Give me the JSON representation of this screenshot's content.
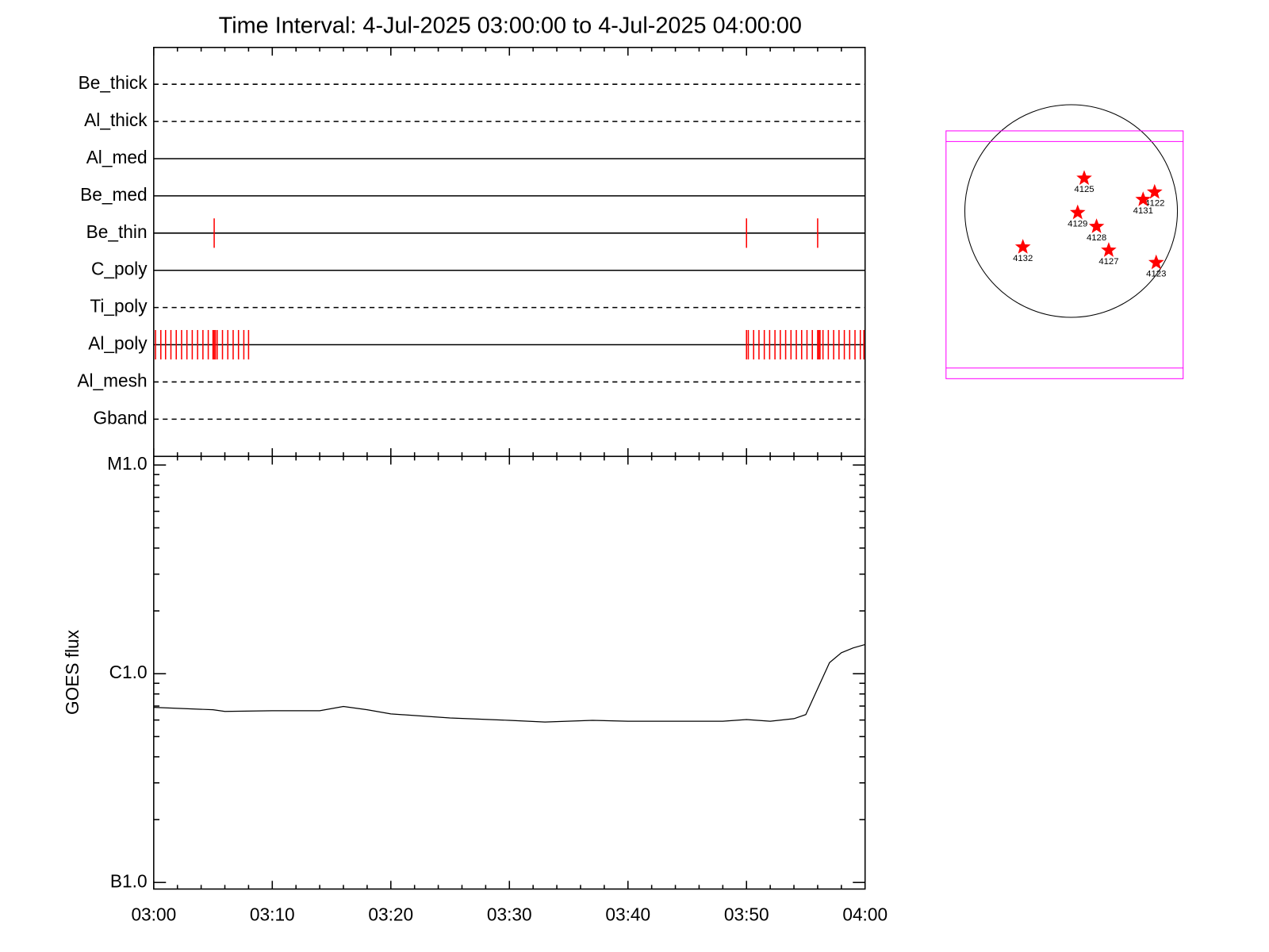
{
  "chart_data": [
    {
      "type": "timeline",
      "title": "Time Interval:  4-Jul-2025 03:00:00 to  4-Jul-2025 04:00:00",
      "xlim": [
        0,
        60
      ],
      "xticks": [
        0,
        10,
        20,
        30,
        40,
        50,
        60
      ],
      "xminorticks": [
        2,
        4,
        6,
        8,
        12,
        14,
        16,
        18,
        22,
        24,
        26,
        28,
        32,
        34,
        36,
        38,
        42,
        44,
        46,
        48,
        52,
        54,
        56,
        58
      ],
      "event_color": "#ff0000",
      "rows": [
        {
          "name": "Be_thick",
          "style": "dashed",
          "events": []
        },
        {
          "name": "Al_thick",
          "style": "dashed",
          "events": []
        },
        {
          "name": "Al_med",
          "style": "solid",
          "events": []
        },
        {
          "name": "Be_med",
          "style": "solid",
          "events": []
        },
        {
          "name": "Be_thin",
          "style": "solid",
          "events": [
            5.1,
            50.0,
            56.0
          ]
        },
        {
          "name": "C_poly",
          "style": "solid",
          "events": []
        },
        {
          "name": "Ti_poly",
          "style": "dashed",
          "events": []
        },
        {
          "name": "Al_poly",
          "style": "solid",
          "events": [
            0.15,
            0.6,
            1.0,
            1.45,
            1.9,
            2.35,
            2.8,
            3.25,
            3.7,
            4.15,
            4.6,
            5.0,
            5.1,
            5.2,
            5.35,
            5.8,
            6.25,
            6.7,
            7.15,
            7.6,
            8.0,
            50.0,
            50.15,
            50.6,
            51.05,
            51.5,
            51.95,
            52.4,
            52.85,
            53.3,
            53.75,
            54.2,
            54.65,
            55.1,
            55.55,
            56.0,
            56.1,
            56.2,
            56.45,
            56.9,
            57.35,
            57.8,
            58.25,
            58.7,
            59.15,
            59.6,
            59.9
          ]
        },
        {
          "name": "Al_mesh",
          "style": "dashed",
          "events": []
        },
        {
          "name": "Gband",
          "style": "dashed",
          "events": []
        }
      ]
    },
    {
      "type": "line",
      "ylabel": "GOES flux",
      "color": "#000000",
      "log_scale": true,
      "xlim": [
        0,
        60
      ],
      "xticks": [
        {
          "value": 0,
          "label": "03:00"
        },
        {
          "value": 10,
          "label": "03:10"
        },
        {
          "value": 20,
          "label": "03:20"
        },
        {
          "value": 30,
          "label": "03:30"
        },
        {
          "value": 40,
          "label": "03:40"
        },
        {
          "value": 50,
          "label": "03:50"
        },
        {
          "value": 60,
          "label": "04:00"
        }
      ],
      "xminorticks": [
        2,
        4,
        6,
        8,
        12,
        14,
        16,
        18,
        22,
        24,
        26,
        28,
        32,
        34,
        36,
        38,
        42,
        44,
        46,
        48,
        52,
        54,
        56,
        58
      ],
      "ylim": [
        9.3e-08,
        1.1e-05
      ],
      "yticks": [
        {
          "value": 1e-07,
          "label": "B1.0"
        },
        {
          "value": 1e-06,
          "label": "C1.0"
        },
        {
          "value": 1e-05,
          "label": "M1.0"
        }
      ],
      "yminorticks": [
        2e-07,
        3e-07,
        4e-07,
        5e-07,
        6e-07,
        7e-07,
        8e-07,
        9e-07,
        2e-06,
        3e-06,
        4e-06,
        5e-06,
        6e-06,
        7e-06,
        8e-06,
        9e-06
      ],
      "x": [
        0,
        5,
        6,
        10,
        14,
        16,
        18,
        20,
        25,
        30,
        33,
        37,
        40,
        48,
        50,
        52,
        54,
        55,
        57,
        58,
        59,
        60
      ],
      "values": [
        6.9e-07,
        6.72e-07,
        6.6e-07,
        6.65e-07,
        6.65e-07,
        6.97e-07,
        6.72e-07,
        6.42e-07,
        6.14e-07,
        5.98e-07,
        5.87e-07,
        5.98e-07,
        5.92e-07,
        5.92e-07,
        6.03e-07,
        5.92e-07,
        6.09e-07,
        6.37e-07,
        1.13e-06,
        1.26e-06,
        1.33e-06,
        1.38e-06
      ]
    },
    {
      "type": "scatter",
      "color": "#ff0000",
      "xlim": [
        -1150,
        1150
      ],
      "ylim": [
        -1150,
        1150
      ],
      "labels": [
        "4125",
        "4122",
        "4131",
        "4129",
        "4128",
        "4132",
        "4127",
        "4123"
      ],
      "x": [
        118,
        753,
        649,
        59,
        229,
        -435,
        339,
        767
      ],
      "y": [
        295,
        170,
        103,
        -15,
        -140,
        -325,
        -354,
        -465
      ]
    }
  ]
}
